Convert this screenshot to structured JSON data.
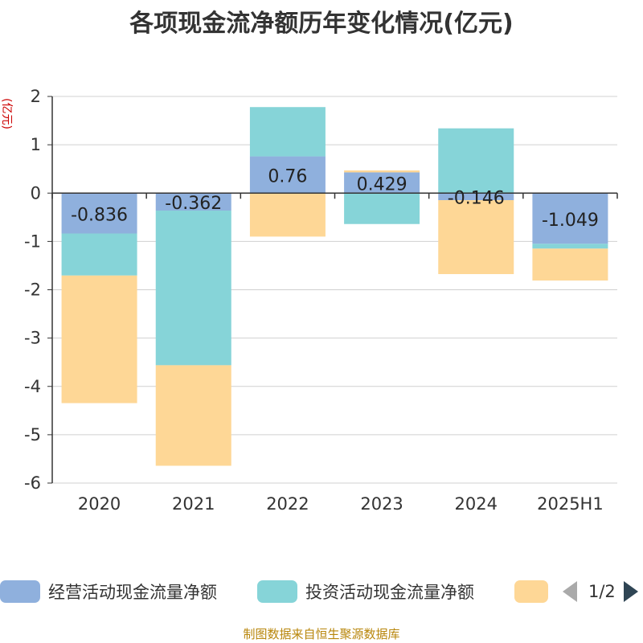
{
  "title": "各项现金流净额历年变化情况(亿元)",
  "source": "制图数据来自恒生聚源数据库",
  "chart_data": {
    "type": "bar",
    "stacked": true,
    "title": "各项现金流净额历年变化情况(亿元)",
    "ylabel": "(亿元)",
    "ylim": [
      -6,
      2
    ],
    "yticks": [
      2,
      1,
      0,
      -1,
      -2,
      -3,
      -4,
      -5,
      -6
    ],
    "grid": true,
    "legend_position": "bottom",
    "categories": [
      "2020",
      "2021",
      "2022",
      "2023",
      "2024",
      "2025H1"
    ],
    "series": [
      {
        "name": "经营活动现金流量净额",
        "color": "#8fb0dd",
        "values": [
          -0.836,
          -0.362,
          0.76,
          0.429,
          -0.146,
          -1.049
        ],
        "labels": [
          "-0.836",
          "-0.362",
          "0.76",
          "0.429",
          "-0.146",
          "-1.049"
        ]
      },
      {
        "name": "投资活动现金流量净额",
        "color": "#86d4d8",
        "values": [
          -0.87,
          -3.2,
          1.02,
          -0.64,
          1.34,
          -0.1
        ]
      },
      {
        "name": "",
        "color": "#fed796",
        "values": [
          -2.64,
          -2.08,
          -0.9,
          0.04,
          -1.53,
          -0.66
        ]
      }
    ]
  },
  "legend": {
    "items": [
      {
        "label": "经营活动现金流量净额",
        "color": "#8fb0dd"
      },
      {
        "label": "投资活动现金流量净额",
        "color": "#86d4d8"
      },
      {
        "label": "",
        "color": "#fed796"
      }
    ],
    "page": "1/2"
  }
}
